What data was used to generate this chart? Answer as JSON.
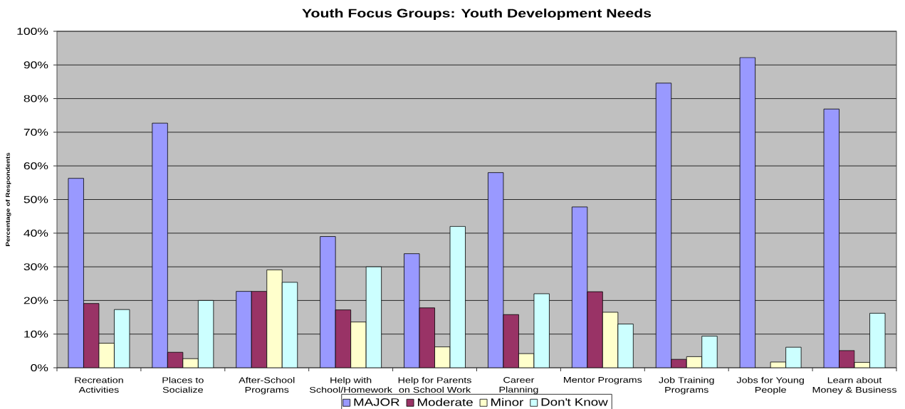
{
  "chart_data": {
    "type": "bar",
    "title": "Youth Focus Groups: Youth Development Needs",
    "ylabel": "Percentage of Respondents",
    "categories": [
      "Recreation Activities",
      "Places to Socialize",
      "After-School Programs",
      "Help with School/Homework",
      "Help for Parents on School Work",
      "Career Planning",
      "Mentor Programs",
      "Job Training Programs",
      "Jobs for Young People",
      "Learn about Money & Business"
    ],
    "series": [
      {
        "name": "MAJOR",
        "color": "#9999ff",
        "values": [
          56.3,
          72.7,
          22.7,
          39.0,
          33.9,
          58.0,
          47.8,
          84.6,
          92.2,
          76.9
        ]
      },
      {
        "name": "Moderate",
        "color": "#993366",
        "values": [
          19.1,
          4.6,
          22.7,
          17.2,
          17.8,
          15.8,
          22.6,
          2.5,
          null,
          5.1
        ]
      },
      {
        "name": "Minor",
        "color": "#ffffcc",
        "values": [
          7.3,
          2.7,
          29.1,
          13.6,
          6.2,
          4.2,
          16.5,
          3.3,
          1.7,
          1.6
        ]
      },
      {
        "name": "Don't Know",
        "color": "#ccffff",
        "values": [
          17.3,
          20.0,
          25.4,
          30.0,
          42.0,
          22.0,
          13.0,
          9.4,
          6.1,
          16.2
        ]
      }
    ],
    "ylim": [
      0,
      100
    ],
    "yticks": [
      {
        "value": 0,
        "label": "0%"
      },
      {
        "value": 10,
        "label": "10%"
      },
      {
        "value": 20,
        "label": "20%"
      },
      {
        "value": 30,
        "label": "30%"
      },
      {
        "value": 40,
        "label": "40%"
      },
      {
        "value": 50,
        "label": "50%"
      },
      {
        "value": 60,
        "label": "60%"
      },
      {
        "value": 70,
        "label": "70%"
      },
      {
        "value": 80,
        "label": "80%"
      },
      {
        "value": 90,
        "label": "90%"
      },
      {
        "value": 100,
        "label": "100%"
      }
    ],
    "grid": "y",
    "legend": "bottom"
  }
}
